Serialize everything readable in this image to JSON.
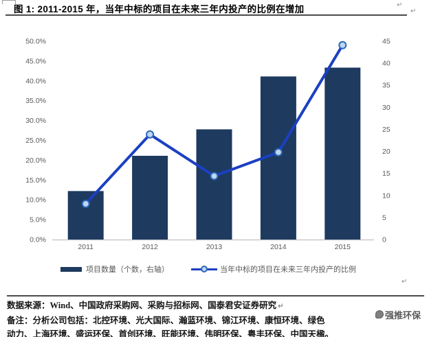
{
  "header": {
    "title": "图 1: 2011-2015 年，当年中标的项目在未来三年内投产的比例在增加"
  },
  "artifacts": {
    "return_mark": "↵"
  },
  "chart_data": {
    "type": "bar",
    "subtype": "bar+line combo, dual axis",
    "categories": [
      "2011",
      "2012",
      "2013",
      "2014",
      "2015"
    ],
    "series": [
      {
        "name": "项目数量（个数，右轴）",
        "type": "bar",
        "axis": "right",
        "values": [
          11,
          19,
          25,
          37,
          39
        ]
      },
      {
        "name": "当年中标的项目在未来三年内投产的比例",
        "type": "line",
        "axis": "left",
        "values": [
          9,
          26.5,
          16,
          22,
          49
        ]
      }
    ],
    "left_axis": {
      "min": 0,
      "max": 50,
      "step": 5,
      "format": "percent",
      "ticks": [
        "50.0%",
        "45.0%",
        "40.0%",
        "35.0%",
        "30.0%",
        "25.0%",
        "20.0%",
        "15.0%",
        "10.0%",
        "5.0%",
        "0.0%"
      ]
    },
    "right_axis": {
      "min": 0,
      "max": 45,
      "step": 5,
      "ticks": [
        "45",
        "40",
        "35",
        "30",
        "25",
        "20",
        "15",
        "10",
        "5",
        "0"
      ]
    },
    "grid": false,
    "legend_position": "bottom",
    "colors": {
      "bar": "#1e3a5f",
      "line": "#1b40c2",
      "marker_fill": "#bcd7f0",
      "marker_stroke": "#2e66b8",
      "axis_text": "#595959",
      "axis_line": "#c9c9c9"
    }
  },
  "footer": {
    "source": "数据来源：Wind、中国政府采购网、采购与招标网、国泰君安证券研究",
    "note_line1": "备注：分析公司包括：北控环境、光大国际、瀚蓝环境、锦江环境、康恒环境、绿色",
    "note_line2": "动力、上海环境、盛运环保、首创环境、旺能环境、伟明环保、粤丰环保、中国天楹。"
  },
  "watermark": {
    "text": "强推环保"
  }
}
